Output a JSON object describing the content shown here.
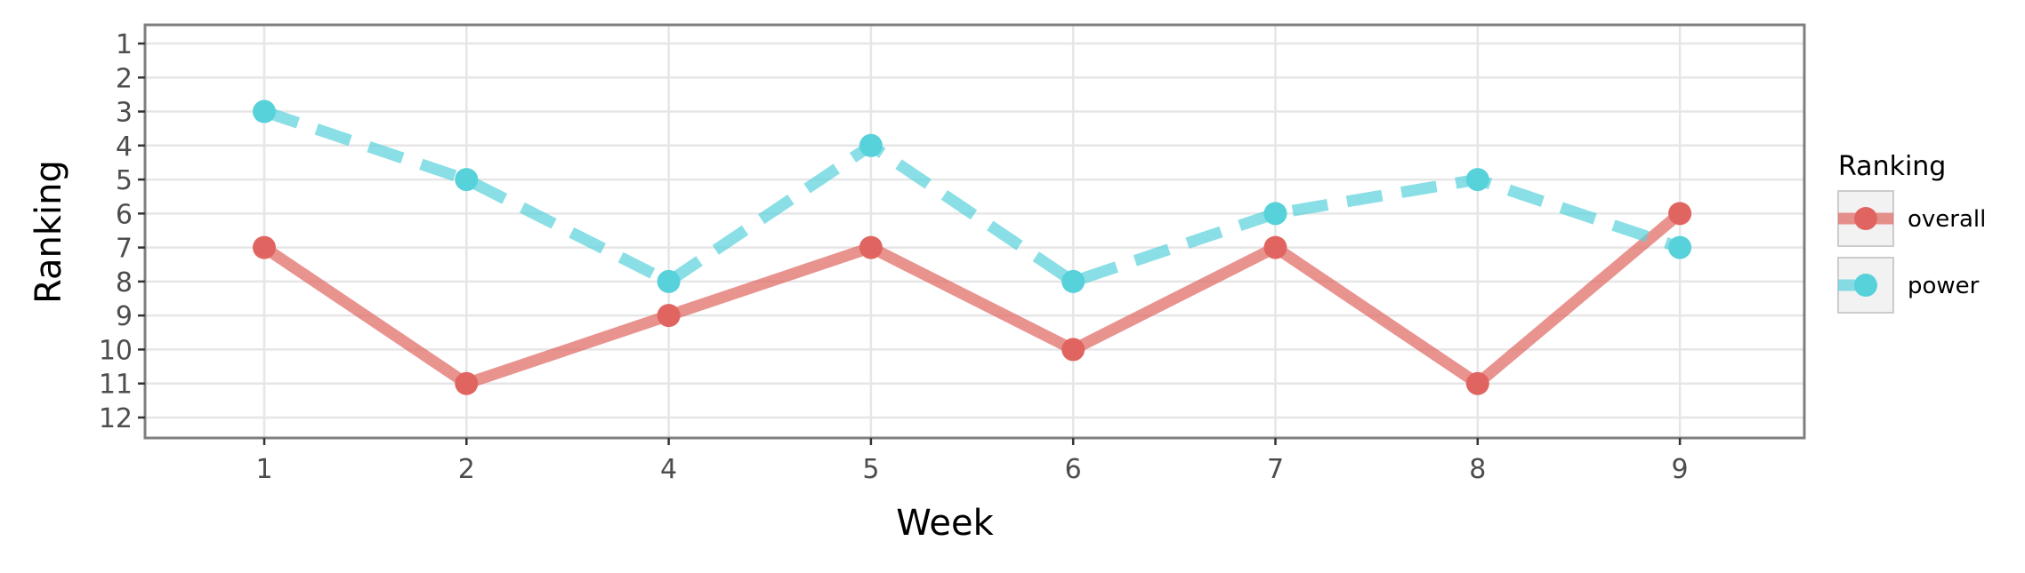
{
  "chart_data": {
    "type": "line",
    "xlabel": "Week",
    "ylabel": "Ranking",
    "categories": [
      "1",
      "2",
      "4",
      "5",
      "6",
      "7",
      "8",
      "9"
    ],
    "y_ticks": [
      "1",
      "2",
      "3",
      "4",
      "5",
      "6",
      "7",
      "8",
      "9",
      "10",
      "11",
      "12"
    ],
    "ylim": [
      1,
      12
    ],
    "y_reversed": true,
    "grid": true,
    "legend": {
      "title": "Ranking",
      "position": "right"
    },
    "series": [
      {
        "name": "overall",
        "values": [
          7,
          11,
          9,
          7,
          10,
          7,
          11,
          6
        ],
        "color": "#E06560",
        "line_style": "solid"
      },
      {
        "name": "power",
        "values": [
          3,
          5,
          8,
          4,
          8,
          6,
          5,
          7
        ],
        "color": "#57D1DA",
        "line_style": "dashed"
      }
    ]
  }
}
